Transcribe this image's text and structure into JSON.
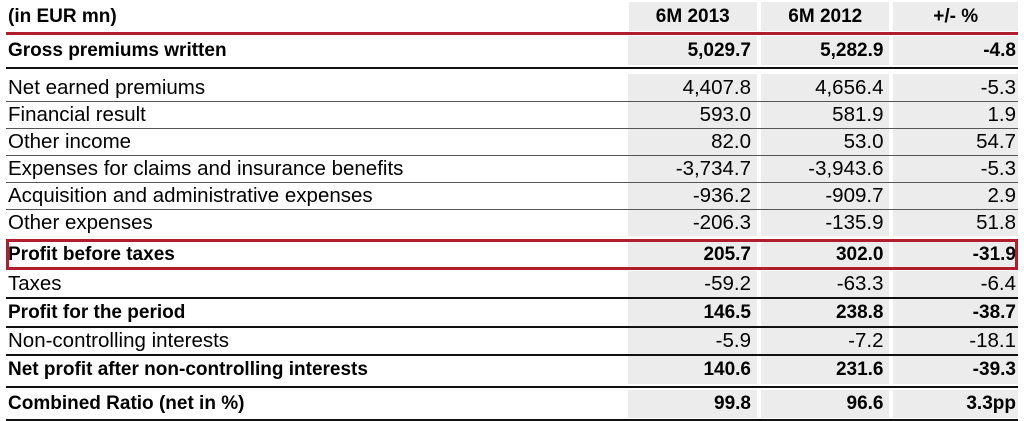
{
  "header": {
    "label": "(in EUR mn)",
    "col1": "6M 2013",
    "col2": "6M 2012",
    "col3": "+/- %"
  },
  "rows": [
    {
      "label": "Gross premiums written",
      "v1": "5,029.7",
      "v2": "5,282.9",
      "v3": "-4.8",
      "style": "bold"
    },
    {
      "label": "Net earned premiums",
      "v1": "4,407.8",
      "v2": "4,656.4",
      "v3": "-5.3",
      "style": "normal"
    },
    {
      "label": "Financial result",
      "v1": "593.0",
      "v2": "581.9",
      "v3": "1.9",
      "style": "normal"
    },
    {
      "label": "Other income",
      "v1": "82.0",
      "v2": "53.0",
      "v3": "54.7",
      "style": "normal"
    },
    {
      "label": "Expenses for claims and insurance benefits",
      "v1": "-3,734.7",
      "v2": "-3,943.6",
      "v3": "-5.3",
      "style": "normal"
    },
    {
      "label": "Acquisition and administrative expenses",
      "v1": "-936.2",
      "v2": "-909.7",
      "v3": "2.9",
      "style": "normal"
    },
    {
      "label": "Other expenses",
      "v1": "-206.3",
      "v2": "-135.9",
      "v3": "51.8",
      "style": "normal"
    },
    {
      "label": "Profit before taxes",
      "v1": "205.7",
      "v2": "302.0",
      "v3": "-31.9",
      "style": "bold"
    },
    {
      "label": "Taxes",
      "v1": "-59.2",
      "v2": "-63.3",
      "v3": "-6.4",
      "style": "normal"
    },
    {
      "label": "Profit for the period",
      "v1": "146.5",
      "v2": "238.8",
      "v3": "-38.7",
      "style": "bold"
    },
    {
      "label": "Non-controlling interests",
      "v1": "-5.9",
      "v2": "-7.2",
      "v3": "-18.1",
      "style": "normal"
    },
    {
      "label": "Net profit after non-controlling interests",
      "v1": "140.6",
      "v2": "231.6",
      "v3": "-39.3",
      "style": "bold"
    },
    {
      "label": "Combined Ratio (net in %)",
      "v1": "99.8",
      "v2": "96.6",
      "v3": "3.3pp",
      "style": "bold"
    }
  ],
  "colors": {
    "accent_red": "#b01e2d",
    "column_shade": "#ececec"
  }
}
